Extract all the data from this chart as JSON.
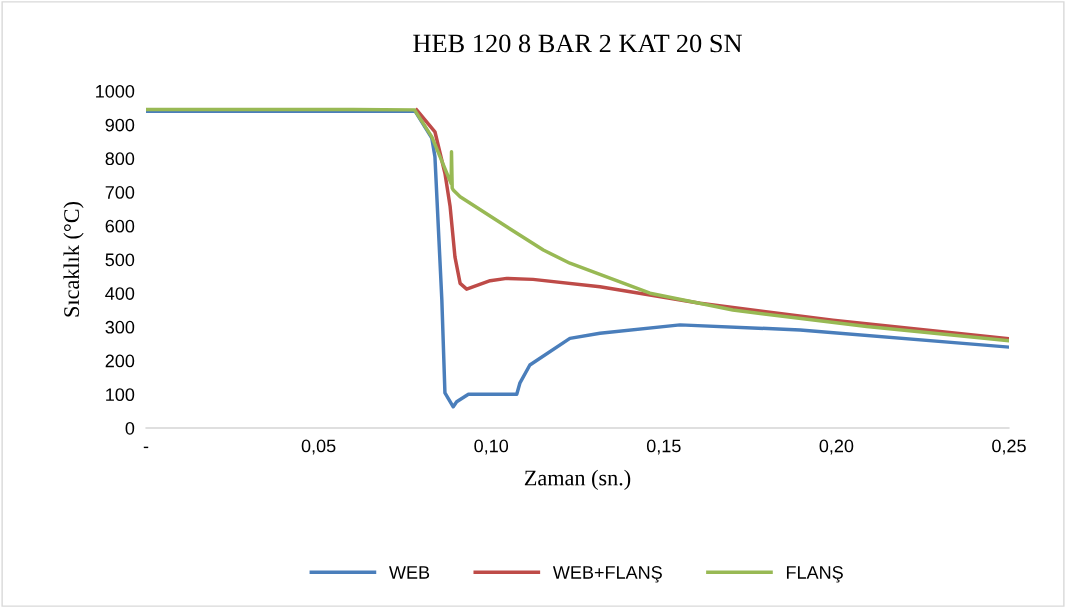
{
  "chart_data": {
    "type": "line",
    "title": "HEB 120 8 BAR 2 KAT 20 SN",
    "xlabel": "Zaman (sn.)",
    "ylabel": "Sıcaklık (°C)",
    "xlim": [
      0,
      0.25
    ],
    "xticks": [
      {
        "value": 0,
        "label": "-"
      },
      {
        "value": 0.05,
        "label": "0,05"
      },
      {
        "value": 0.1,
        "label": "0,10"
      },
      {
        "value": 0.15,
        "label": "0,15"
      },
      {
        "value": 0.2,
        "label": "0,20"
      },
      {
        "value": 0.25,
        "label": "0,25"
      }
    ],
    "ylim": [
      0,
      1000
    ],
    "yticks": [
      0,
      100,
      200,
      300,
      400,
      500,
      600,
      700,
      800,
      900,
      1000
    ],
    "grid": false,
    "legend": "bottom",
    "marker": "none",
    "line_style": "solid",
    "series": [
      {
        "name": "WEB",
        "color": "#4a7ebb",
        "x": [
          0,
          0.02,
          0.04,
          0.06,
          0.078,
          0.0828,
          0.0837,
          0.0857,
          0.0866,
          0.089,
          0.09,
          0.0934,
          0.1074,
          0.1083,
          0.1112,
          0.1228,
          0.1315,
          0.1547,
          0.1895,
          0.25
        ],
        "values": [
          940,
          940,
          940,
          940,
          940,
          860,
          805,
          380,
          104,
          63,
          78,
          100,
          100,
          133,
          187,
          266,
          281,
          306,
          291,
          240
        ]
      },
      {
        "name": "WEB+FLANŞ",
        "color": "#be4b48",
        "x": [
          0.0784,
          0.0837,
          0.0866,
          0.0881,
          0.0895,
          0.091,
          0.0929,
          0.0997,
          0.1045,
          0.1121,
          0.1315,
          0.1605,
          0.199,
          0.25
        ],
        "values": [
          944,
          879,
          756,
          657,
          508,
          429,
          412,
          437,
          444,
          441,
          419,
          370,
          320,
          265
        ]
      },
      {
        "name": "FLANŞ",
        "color": "#98b954",
        "x": [
          0,
          0.02,
          0.04,
          0.06,
          0.0778,
          0.0828,
          0.0884,
          0.0885,
          0.0887,
          0.089,
          0.091,
          0.1045,
          0.1151,
          0.1228,
          0.146,
          0.17,
          0.2088,
          0.25
        ],
        "values": [
          945,
          945,
          945,
          945,
          944,
          864,
          725,
          820,
          712,
          706,
          686,
          597,
          528,
          489,
          400,
          350,
          301,
          259
        ]
      }
    ]
  }
}
